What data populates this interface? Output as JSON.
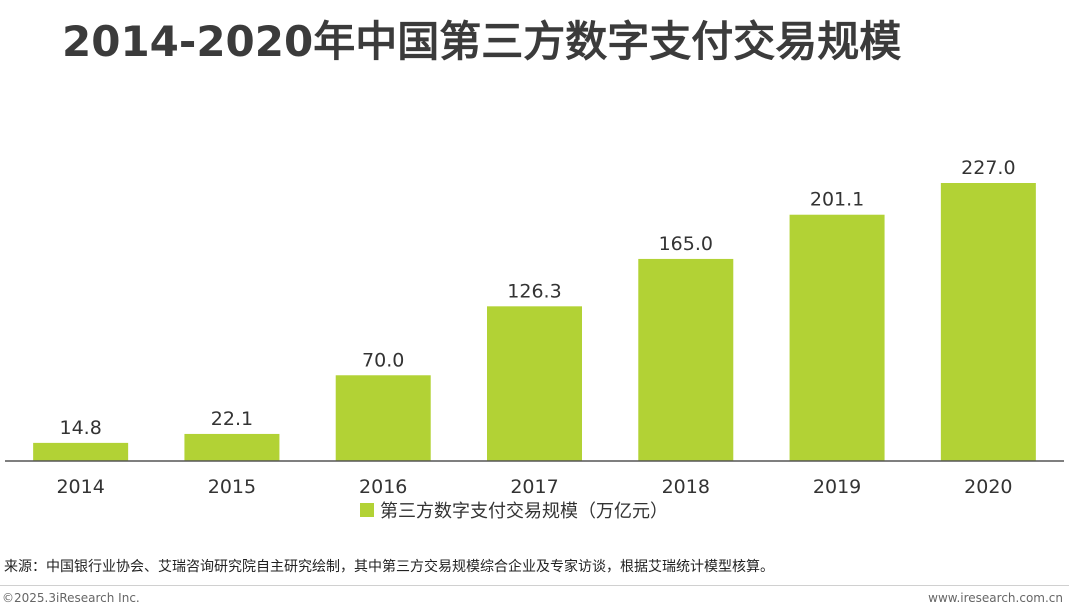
{
  "title": "2014-2020年中国第三方数字支付交易规模",
  "chart_data": {
    "type": "bar",
    "categories": [
      "2014",
      "2015",
      "2016",
      "2017",
      "2018",
      "2019",
      "2020"
    ],
    "series": [
      {
        "name": "第三方数字支付交易规模（万亿元）",
        "values": [
          14.8,
          22.1,
          70.0,
          126.3,
          165.0,
          201.1,
          227.0
        ],
        "color": "#b2d235"
      }
    ],
    "value_labels": [
      "14.8",
      "22.1",
      "70.0",
      "126.3",
      "165.0",
      "201.1",
      "227.0"
    ],
    "legend_position": "bottom",
    "grid": false
  },
  "legend": {
    "label": "第三方数字支付交易规模（万亿元）",
    "color": "#b2d235"
  },
  "source": "来源：中国银行业协会、艾瑞咨询研究院自主研究绘制，其中第三方交易规模综合企业及专家访谈，根据艾瑞统计模型核算。",
  "copyright": "©2025.3iResearch Inc.",
  "website": "www.iresearch.com.cn"
}
